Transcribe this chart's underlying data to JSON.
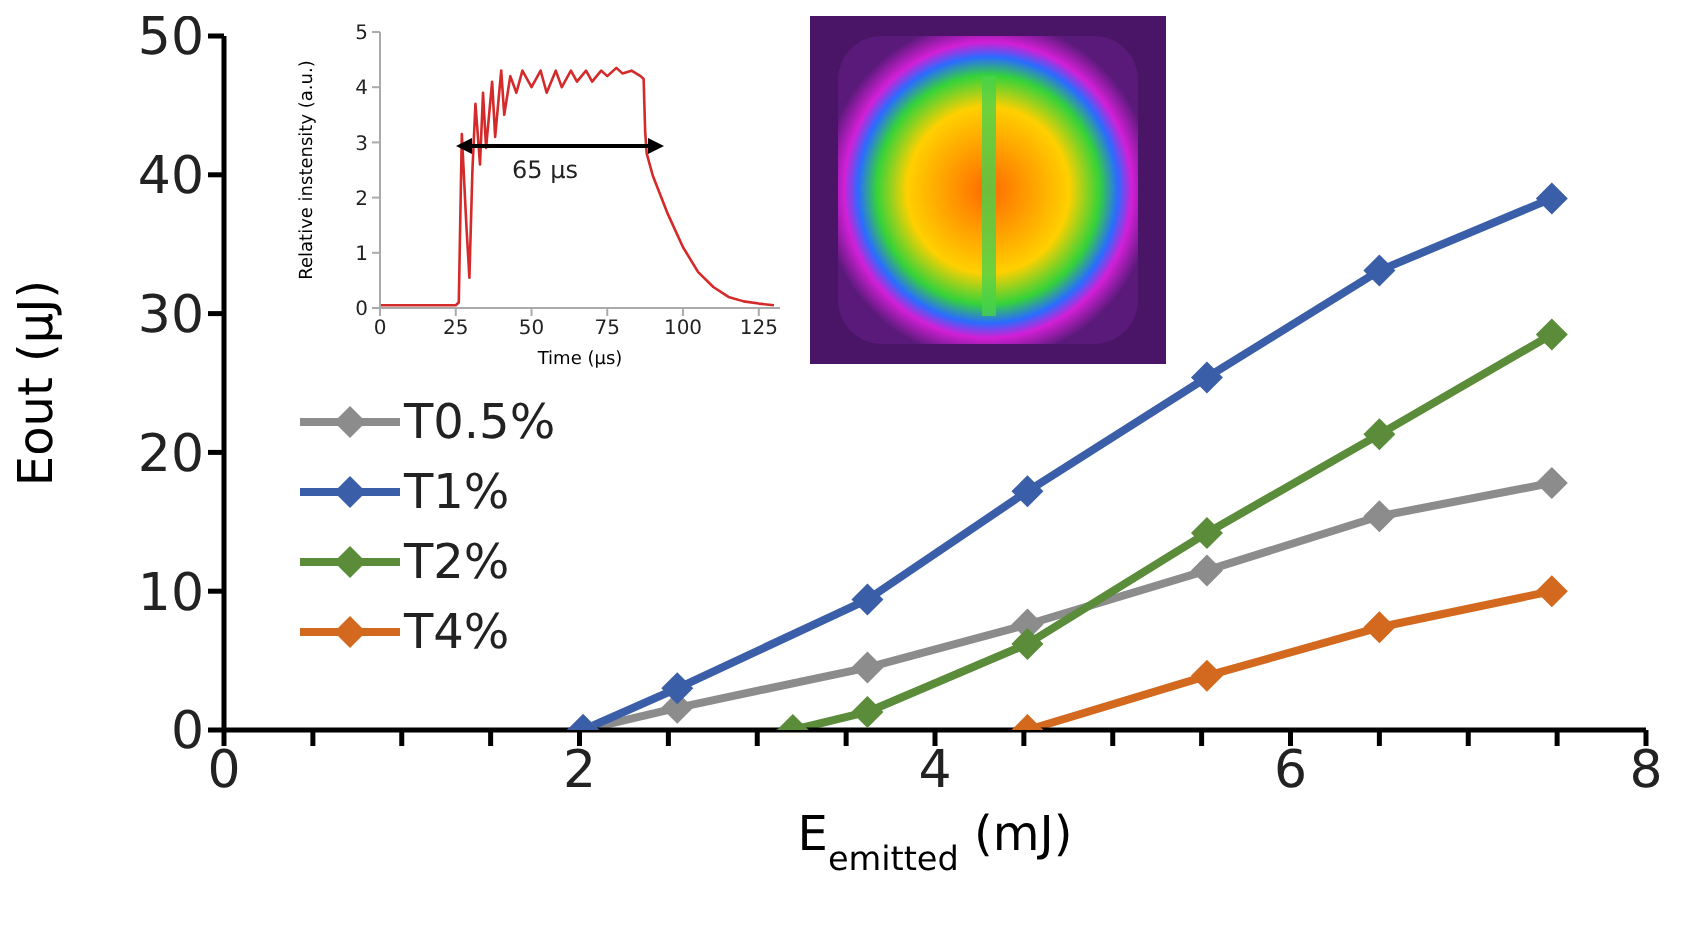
{
  "chart_data": [
    {
      "type": "line",
      "xlabel": "E$_{emitted}$ (mJ)",
      "ylabel": "Eout (µJ)",
      "xlim": [
        0,
        8
      ],
      "xticks": [
        0,
        {
          "value": 0.5,
          "label": null
        },
        {
          "value": 1,
          "label": null
        },
        {
          "value": 1.5,
          "label": null
        },
        2,
        {
          "value": 2.5,
          "label": null
        },
        {
          "value": 3,
          "label": null
        },
        {
          "value": 3.5,
          "label": null
        },
        4,
        {
          "value": 4.5,
          "label": null
        },
        {
          "value": 5,
          "label": null
        },
        {
          "value": 5.5,
          "label": null
        },
        6,
        {
          "value": 6.5,
          "label": null
        },
        {
          "value": 7,
          "label": null
        },
        {
          "value": 7.5,
          "label": null
        },
        8
      ],
      "ylim": [
        0,
        50
      ],
      "yticks": [
        0,
        10,
        20,
        30,
        40,
        50
      ],
      "grid": false,
      "legend": "left",
      "marker": "diamond",
      "line_style": "solid",
      "series": [
        {
          "name": "T0.5%",
          "color": "#8c8c8c",
          "x": [
            2.02,
            2.55,
            3.62,
            4.52,
            5.53,
            6.5,
            7.47
          ],
          "values": [
            0,
            1.6,
            4.5,
            7.6,
            11.5,
            15.4,
            17.8
          ]
        },
        {
          "name": "T1%",
          "color": "#3a5ea8",
          "x": [
            2.02,
            2.55,
            3.62,
            4.52,
            5.53,
            6.5,
            7.47
          ],
          "values": [
            0,
            3,
            9.4,
            17.2,
            25.4,
            33.1,
            38.3
          ]
        },
        {
          "name": "T2%",
          "color": "#5b8c3a",
          "x": [
            3.2,
            3.62,
            4.52,
            5.53,
            6.5,
            7.47
          ],
          "values": [
            0,
            1.3,
            6.2,
            14.2,
            21.3,
            28.5
          ]
        },
        {
          "name": "T4%",
          "color": "#d2691e",
          "x": [
            4.52,
            5.53,
            6.5,
            7.47
          ],
          "values": [
            0,
            3.9,
            7.4,
            10
          ]
        }
      ]
    },
    {
      "type": "line",
      "xlabel": "Time (µs)",
      "ylabel": "Relative instensity (a.u.)",
      "xlim": [
        0,
        132
      ],
      "xticks": [
        0,
        25,
        50,
        75,
        100,
        125
      ],
      "ylim": [
        0,
        5
      ],
      "yticks": [
        0,
        1,
        2,
        3,
        4,
        5
      ],
      "grid": false,
      "legend": false,
      "marker": "none",
      "annotations": [
        "65 µs"
      ],
      "series": [
        {
          "color": "#d42a2a",
          "x": [
            0,
            10,
            25,
            26,
            27,
            28.5,
            29.5,
            30.5,
            31.5,
            33,
            34,
            35,
            37,
            38,
            40,
            41,
            43,
            45,
            47,
            50,
            53,
            55,
            58,
            60,
            63,
            65,
            68,
            70,
            73,
            75,
            78,
            80,
            83,
            86,
            87,
            87.5,
            88,
            90,
            95,
            100,
            105,
            110,
            115,
            120,
            125,
            130
          ],
          "values": [
            0.05,
            0.05,
            0.05,
            0.1,
            3.15,
            1.5,
            0.55,
            2.5,
            3.7,
            2.6,
            3.9,
            2.9,
            4.1,
            3.1,
            4.3,
            3.5,
            4.2,
            3.9,
            4.3,
            4,
            4.3,
            3.9,
            4.3,
            4,
            4.3,
            4.1,
            4.3,
            4.1,
            4.3,
            4.2,
            4.35,
            4.25,
            4.3,
            4.2,
            4.15,
            3.2,
            2.8,
            2.4,
            1.7,
            1.1,
            0.65,
            0.38,
            0.2,
            0.12,
            0.08,
            0.05
          ]
        }
      ]
    }
  ]
}
